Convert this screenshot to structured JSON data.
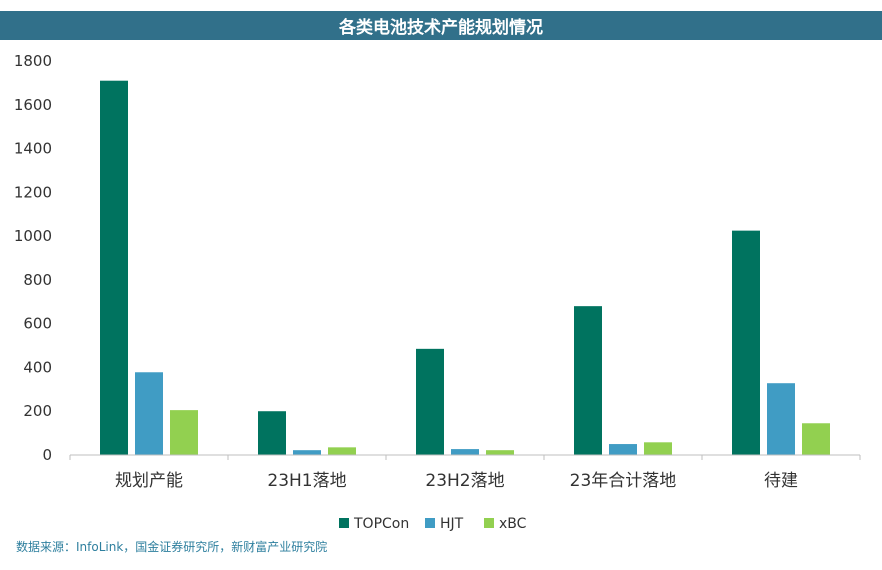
{
  "chart_data": {
    "type": "bar",
    "title": "各类电池技术产能规划情况",
    "categories": [
      "规划产能",
      "23H1落地",
      "23H2落地",
      "23年合计落地",
      "待建"
    ],
    "series": [
      {
        "name": "TOPCon",
        "color": "#00735f",
        "values": [
          1710,
          200,
          485,
          680,
          1025
        ]
      },
      {
        "name": "HJT",
        "color": "#409cc4",
        "values": [
          378,
          22,
          27,
          50,
          328
        ]
      },
      {
        "name": "xBC",
        "color": "#92d050",
        "values": [
          205,
          35,
          22,
          58,
          145
        ]
      }
    ],
    "yticks": [
      "0",
      "200",
      "400",
      "600",
      "800",
      "1000",
      "1200",
      "1400",
      "1600",
      "1800"
    ],
    "ylim": [
      0,
      1800
    ],
    "legend_position": "bottom",
    "grid": false
  },
  "source_note": "数据来源：InfoLink，国金证券研究所，新财富产业研究院"
}
